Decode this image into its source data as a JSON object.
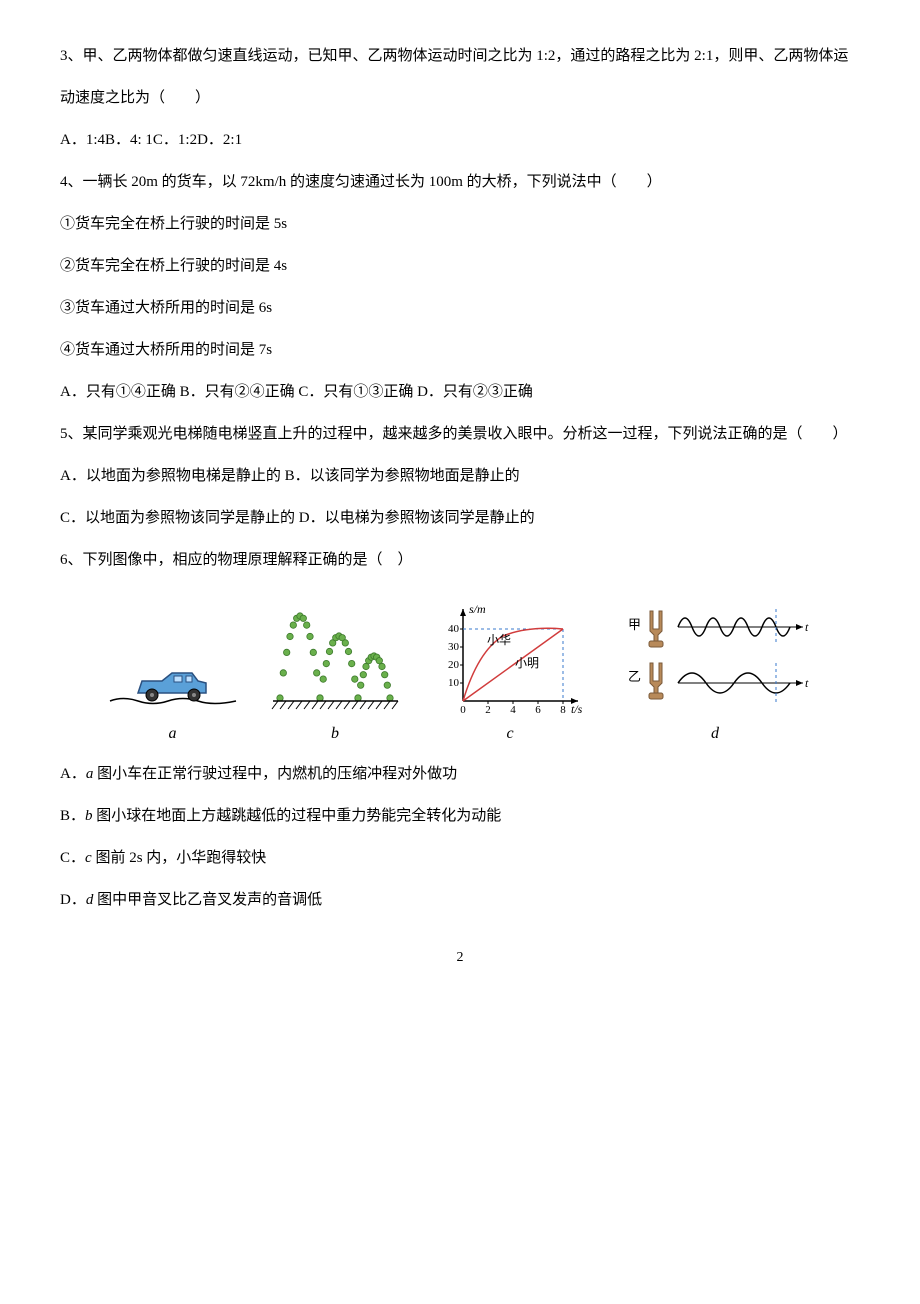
{
  "q3": {
    "stem": "3、甲、乙两物体都做匀速直线运动，已知甲、乙两物体运动时间之比为 1:2，通过的路程之比为 2:1，则甲、乙两物体运动速度之比为（　　）",
    "options": "A．1:4B．4: 1C．1:2D．2:1"
  },
  "q4": {
    "stem": "4、一辆长 20m 的货车，以 72km/h 的速度匀速通过长为 100m 的大桥，下列说法中（　　）",
    "s1": "①货车完全在桥上行驶的时间是 5s",
    "s2": "②货车完全在桥上行驶的时间是 4s",
    "s3": "③货车通过大桥所用的时间是 6s",
    "s4": "④货车通过大桥所用的时间是 7s",
    "options": "A．只有①④正确 B．只有②④正确 C．只有①③正确 D．只有②③正确"
  },
  "q5": {
    "stem": "5、某同学乘观光电梯随电梯竖直上升的过程中，越来越多的美景收入眼中。分析这一过程，下列说法正确的是（　　）",
    "line1": "A．以地面为参照物电梯是静止的 B．以该同学为参照物地面是静止的",
    "line2": "C．以地面为参照物该同学是静止的 D．以电梯为参照物该同学是静止的"
  },
  "q6": {
    "stem": "6、下列图像中，相应的物理原理解释正确的是（　）",
    "optA_pre": "A．",
    "optA_i": "a",
    "optA_post": " 图小车在正常行驶过程中，内燃机的压缩冲程对外做功",
    "optB_pre": "B．",
    "optB_i": "b",
    "optB_post": " 图小球在地面上方越跳越低的过程中重力势能完全转化为动能",
    "optC_pre": "C．",
    "optC_i": "c",
    "optC_post": " 图前 2s 内，小华跑得较快",
    "optD_pre": "D．",
    "optD_i": "d",
    "optD_post": " 图中甲音叉比乙音叉发声的音调低"
  },
  "figures": {
    "a": {
      "label": "a",
      "car_body_fill": "#5aa0d8",
      "car_body_stroke": "#2a5080",
      "ground": "#000"
    },
    "b": {
      "label": "b",
      "dot_fill": "#6ab04c",
      "dot_stroke": "#3d7a2c",
      "ground": "#000"
    },
    "c": {
      "label": "c",
      "y_axis_label": "s/m",
      "x_axis_label": "t/s",
      "y_ticks": [
        "10",
        "20",
        "30",
        "40"
      ],
      "x_ticks": [
        "0",
        "2",
        "4",
        "6",
        "8"
      ],
      "name1": "小华",
      "name2": "小明",
      "line_color": "#d13c3c",
      "axis_color": "#000",
      "dash_color": "#3a7acc"
    },
    "d": {
      "label": "d",
      "fork1": "甲",
      "fork2": "乙",
      "wave_color": "#000",
      "dash_color": "#3a7acc",
      "fork_fill": "#b88a5a",
      "fork_stroke": "#7a5a3a"
    }
  },
  "page_number": "2"
}
